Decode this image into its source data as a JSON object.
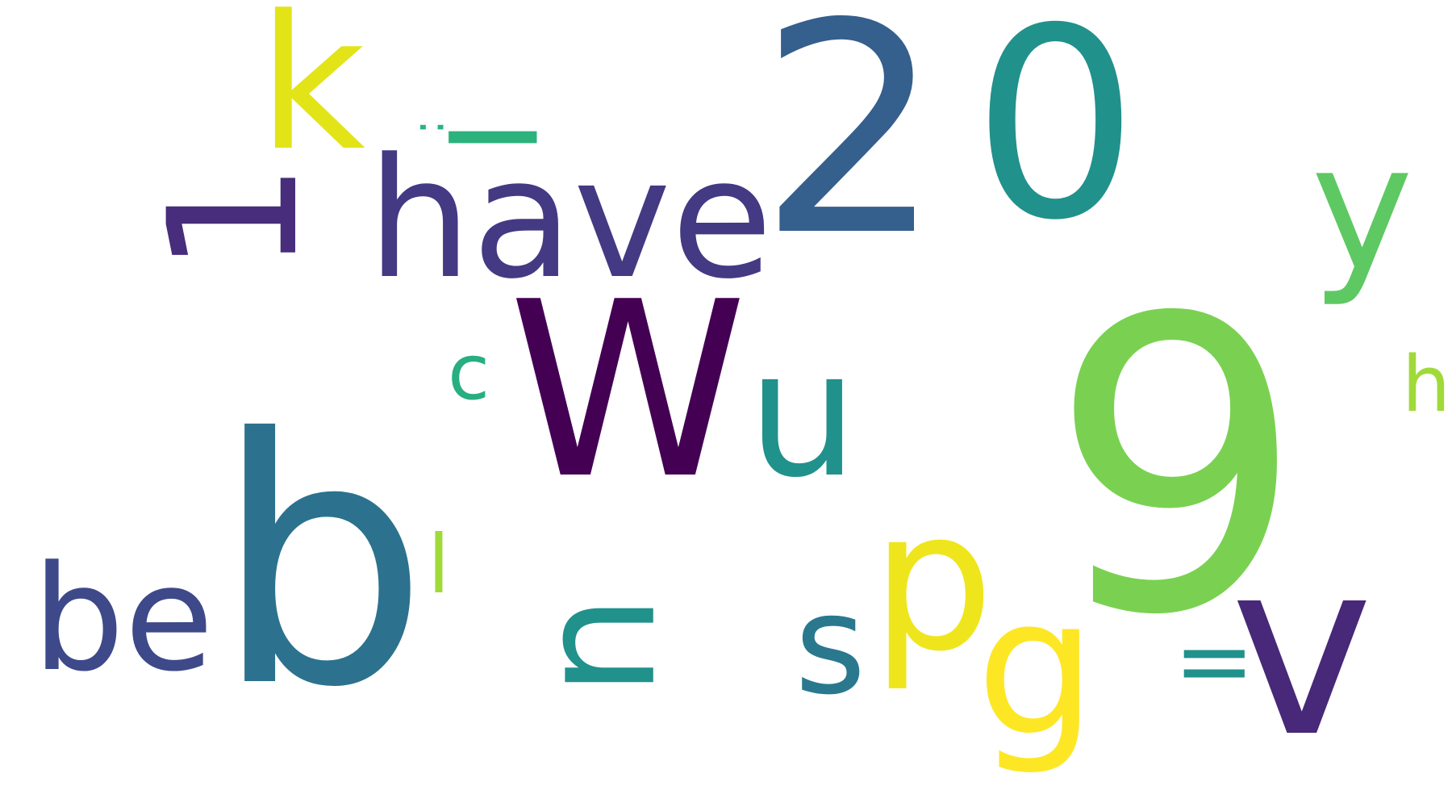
{
  "words": {
    "k": {
      "text": "k",
      "color": "#e2e418"
    },
    "two": {
      "text": "2",
      "color": "#355f8d"
    },
    "zero": {
      "text": "0",
      "color": "#21918c"
    },
    "colon": {
      "text": ":",
      "color": "#2db27d"
    },
    "i_rot": {
      "text": "I",
      "color": "#2db27d"
    },
    "one": {
      "text": "1",
      "color": "#472d7b"
    },
    "have": {
      "text": "have",
      "color": "#443983"
    },
    "y": {
      "text": "y",
      "color": "#5ec962"
    },
    "wu": {
      "text": "Wu",
      "color": "#440154"
    },
    "wu_u": {
      "color": "#21918c"
    },
    "c": {
      "text": "c",
      "color": "#28ae80"
    },
    "nine": {
      "text": "9",
      "color": "#7ad151"
    },
    "h_small": {
      "text": "h",
      "color": "#a0da39"
    },
    "b": {
      "text": "b",
      "color": "#2c728e"
    },
    "l": {
      "text": "l",
      "color": "#a0da39"
    },
    "be": {
      "text": "be",
      "color": "#3e4989"
    },
    "u_rot": {
      "text": "u",
      "color": "#21918c"
    },
    "s": {
      "text": "s",
      "color": "#2a788e"
    },
    "p": {
      "text": "p",
      "color": "#efe51c"
    },
    "g": {
      "text": "g",
      "color": "#fde725"
    },
    "equals": {
      "text": "=",
      "color": "#21918c"
    },
    "v": {
      "text": "v",
      "color": "#482878"
    }
  }
}
